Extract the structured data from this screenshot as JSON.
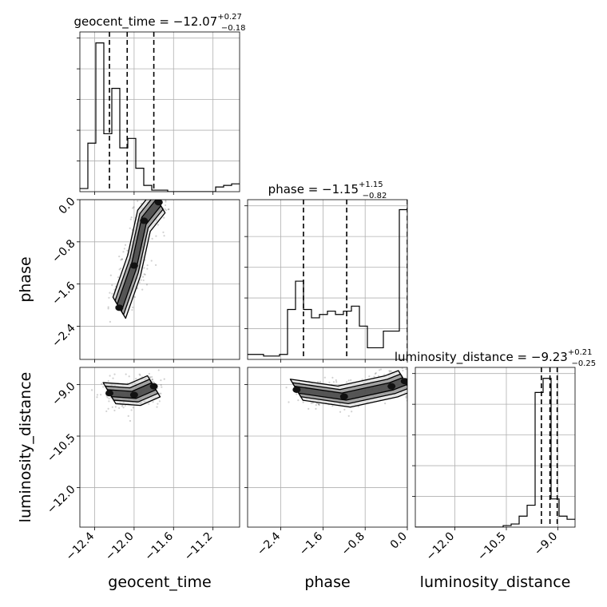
{
  "chart_data": {
    "type": "corner",
    "grid": true,
    "parameters": [
      {
        "name": "geocent_time",
        "xlabel": "geocent_time",
        "ylabel": "",
        "range": [
          -12.55,
          -10.93
        ],
        "ticks": [
          -12.4,
          -12.0,
          -11.6,
          -11.2
        ],
        "tick_labels": [
          "−12.4",
          "−12.0",
          "−11.6",
          "−11.2"
        ],
        "title": {
          "prefix": "geocent_time = −12.07",
          "plus": "+0.27",
          "minus": "−0.18"
        },
        "quantiles": [
          -12.25,
          -12.07,
          -11.8
        ],
        "hist_edges": [
          -12.55,
          -12.469,
          -12.388,
          -12.307,
          -12.226,
          -12.145,
          -12.064,
          -11.983,
          -11.902,
          -11.821,
          -11.74,
          -11.659,
          -11.578,
          -11.497,
          -11.416,
          -11.335,
          -11.254,
          -11.173,
          -11.092,
          -11.011,
          -10.93
        ],
        "hist_values": [
          0.02,
          0.31,
          0.95,
          0.37,
          0.66,
          0.28,
          0.34,
          0.15,
          0.04,
          0.01,
          0.01,
          0.0,
          0.0,
          0.0,
          0.0,
          0.0,
          0.0,
          0.03,
          0.04,
          0.05
        ],
        "hist_ymax": 1.02
      },
      {
        "name": "phase",
        "xlabel": "phase",
        "ylabel": "phase",
        "range": [
          -3.03,
          0.0
        ],
        "ticks": [
          -2.4,
          -1.6,
          -0.8,
          0.0
        ],
        "tick_labels": [
          "−2.4",
          "−1.6",
          "−0.8",
          "0.0"
        ],
        "title": {
          "prefix": "phase = −1.15",
          "plus": "+1.15",
          "minus": "−0.82"
        },
        "quantiles": [
          -1.97,
          -1.15,
          0.0
        ],
        "hist_edges": [
          -3.03,
          -2.8785,
          -2.727,
          -2.5755,
          -2.424,
          -2.2725,
          -2.121,
          -1.9695,
          -1.818,
          -1.6665,
          -1.515,
          -1.3635,
          -1.212,
          -1.0605,
          -0.909,
          -0.7575,
          -0.606,
          -0.4545,
          -0.303,
          -0.1515,
          0.0
        ],
        "hist_values": [
          0.03,
          0.03,
          0.02,
          0.02,
          0.03,
          0.3,
          0.47,
          0.3,
          0.25,
          0.27,
          0.29,
          0.27,
          0.29,
          0.32,
          0.2,
          0.07,
          0.07,
          0.17,
          0.17,
          0.9
        ],
        "hist_ymax": 0.96
      },
      {
        "name": "luminosity_distance",
        "xlabel": "luminosity_distance",
        "ylabel": "luminosity_distance",
        "range": [
          -13.15,
          -8.5
        ],
        "ticks": [
          -12.0,
          -10.5,
          -9.0
        ],
        "tick_labels": [
          "−12.0",
          "−10.5",
          "−9.0"
        ],
        "title": {
          "prefix": "luminosity_distance = −9.23",
          "plus": "+0.21",
          "minus": "−0.25"
        },
        "quantiles": [
          -9.48,
          -9.23,
          -9.02
        ],
        "hist_edges": [
          -13.15,
          -12.9175,
          -12.685,
          -12.4525,
          -12.22,
          -11.9875,
          -11.755,
          -11.5225,
          -11.29,
          -11.0575,
          -10.825,
          -10.5925,
          -10.36,
          -10.1275,
          -9.895,
          -9.6625,
          -9.43,
          -9.1975,
          -8.965,
          -8.7325,
          -8.5
        ],
        "hist_values": [
          0.0,
          0.0,
          0.0,
          0.0,
          0.0,
          0.0,
          0.0,
          0.0,
          0.0,
          0.0,
          0.0,
          0.01,
          0.02,
          0.07,
          0.14,
          0.86,
          0.95,
          0.18,
          0.07,
          0.05
        ],
        "hist_ymax": 1.02
      }
    ],
    "contours": [
      {
        "x": "geocent_time",
        "y": "phase",
        "centers": [
          [
            -12.15,
            -2.05
          ],
          [
            -12.0,
            -1.25
          ],
          [
            -11.9,
            -0.4
          ],
          [
            -11.75,
            -0.05
          ]
        ],
        "levels": 3
      },
      {
        "x": "geocent_time",
        "y": "luminosity_distance",
        "centers": [
          [
            -12.25,
            -9.25
          ],
          [
            -12.0,
            -9.3
          ],
          [
            -11.8,
            -9.05
          ]
        ],
        "levels": 3
      },
      {
        "x": "phase",
        "y": "luminosity_distance",
        "centers": [
          [
            -2.1,
            -9.15
          ],
          [
            -1.2,
            -9.35
          ],
          [
            -0.3,
            -9.05
          ],
          [
            -0.05,
            -8.9
          ]
        ],
        "levels": 3
      }
    ]
  }
}
